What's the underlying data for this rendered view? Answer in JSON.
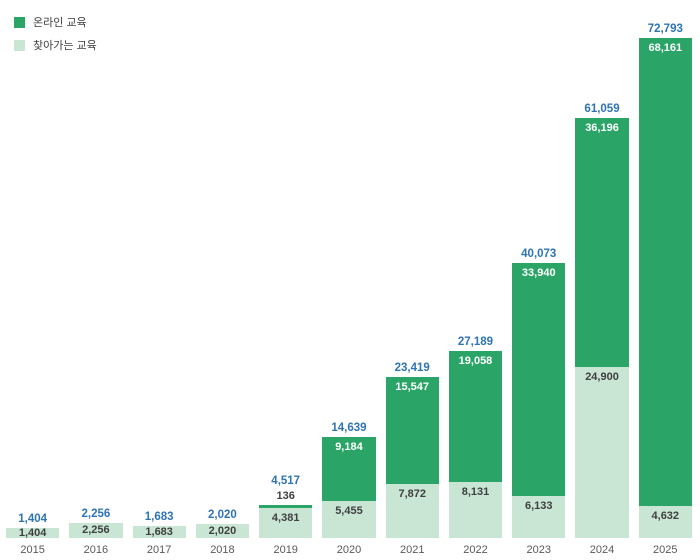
{
  "legend": {
    "items": [
      {
        "label": "온라인 교육",
        "color": "#2aa567"
      },
      {
        "label": "찾아가는 교육",
        "color": "#c9e6d5"
      }
    ]
  },
  "colors": {
    "online": "#2aa567",
    "visiting": "#c9e6d5",
    "total_label": "#2e74b5",
    "segment_label_dark": "#3f3f3f",
    "segment_label_on_green": "#ffffff",
    "year_label": "#595959"
  },
  "chart_data": {
    "type": "bar",
    "stacked": true,
    "categories": [
      "2015",
      "2016",
      "2017",
      "2018",
      "2019",
      "2020",
      "2021",
      "2022",
      "2023",
      "2024",
      "2025"
    ],
    "series": [
      {
        "name": "온라인 교육",
        "color": "#2aa567",
        "values": [
          0,
          0,
          0,
          0,
          136,
          9184,
          15547,
          19058,
          33940,
          36196,
          68161
        ],
        "labels": [
          "",
          "",
          "",
          "",
          "136",
          "9,184",
          "15,547",
          "19,058",
          "33,940",
          "36,196",
          "68,161"
        ]
      },
      {
        "name": "찾아가는 교육",
        "color": "#c9e6d5",
        "values": [
          1404,
          2256,
          1683,
          2020,
          4381,
          5455,
          7872,
          8131,
          6133,
          24900,
          4632
        ],
        "labels": [
          "1,404",
          "2,256",
          "1,683",
          "2,020",
          "4,381",
          "5,455",
          "7,872",
          "8,131",
          "6,133",
          "24,900",
          "4,632"
        ]
      }
    ],
    "totals": [
      1404,
      2256,
      1683,
      2020,
      4517,
      14639,
      23419,
      27189,
      40073,
      61059,
      72793
    ],
    "total_labels": [
      "1,404",
      "2,256",
      "1,683",
      "2,020",
      "4,517",
      "14,639",
      "23,419",
      "27,189",
      "40,073",
      "61,059",
      "72,793"
    ],
    "ylim": [
      0,
      72793
    ],
    "xlabel": "",
    "ylabel": "",
    "grid": false,
    "legend_position": "top-left"
  }
}
